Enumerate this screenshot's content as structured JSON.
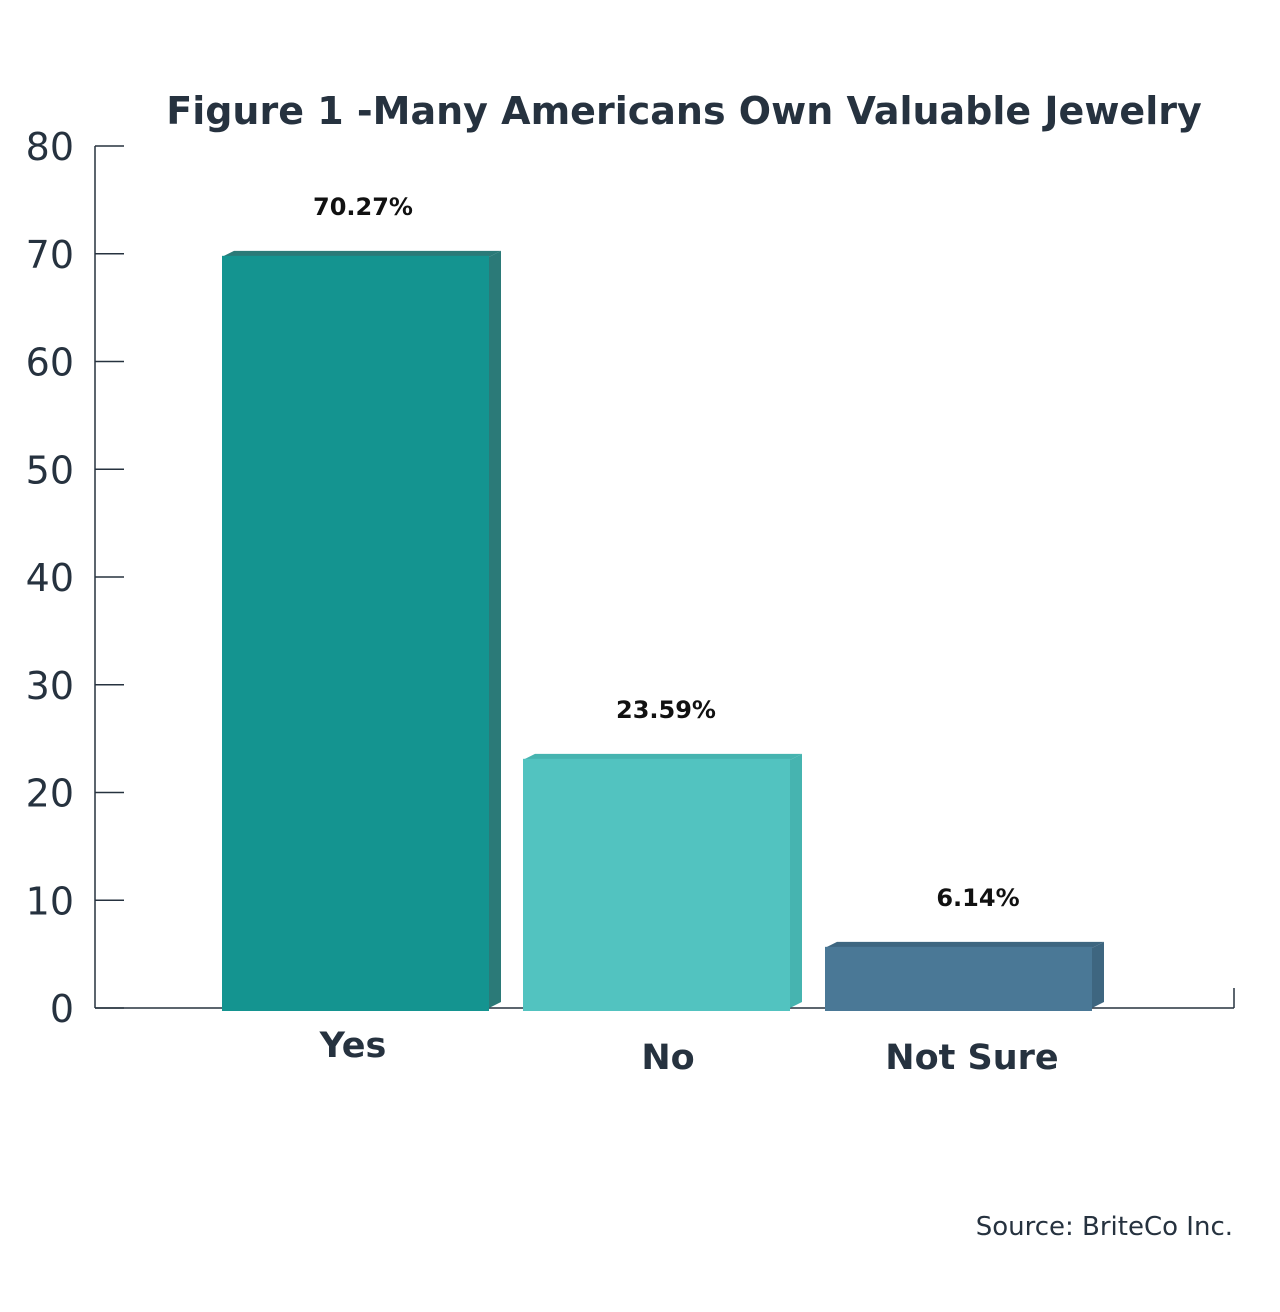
{
  "chart_data": {
    "type": "bar",
    "title": "Figure 1 -Many Americans Own Valuable Jewelry",
    "categories": [
      "Yes",
      "No",
      "Not Sure"
    ],
    "values": [
      70.27,
      23.59,
      6.14
    ],
    "data_labels": [
      "70.27%",
      "23.59%",
      "6.14%"
    ],
    "xlabel": "",
    "ylabel": "",
    "ylim": [
      0,
      80
    ],
    "yticks": [
      "0",
      "10",
      "20",
      "30",
      "40",
      "50",
      "60",
      "70",
      "80"
    ],
    "grid": false,
    "legend": "none",
    "style": "3d",
    "colors": [
      "#149490",
      "#52c3c0",
      "#4a7896"
    ],
    "side_colors": [
      "#2b7a78",
      "#46b4b0",
      "#3e6680"
    ]
  },
  "source": "Source: BriteCo Inc."
}
